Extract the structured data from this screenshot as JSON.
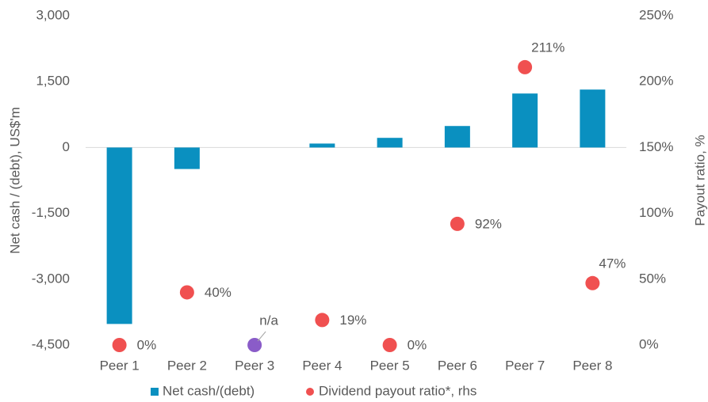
{
  "chart_data": {
    "type": "bar",
    "categories": [
      "Peer 1",
      "Peer 2",
      "Peer 3",
      "Peer 4",
      "Peer 5",
      "Peer 6",
      "Peer 7",
      "Peer 8"
    ],
    "ylabel": "Net cash / (debt), US$'m",
    "y2label": "Payout ratio, %",
    "ylim": [
      -4500,
      3000
    ],
    "yticks": [
      {
        "value": -4500,
        "label": "-4,500"
      },
      {
        "value": -3000,
        "label": "-3,000"
      },
      {
        "value": -1500,
        "label": "-1,500"
      },
      0,
      {
        "value": 1500,
        "label": "1,500"
      },
      {
        "value": 3000,
        "label": "3,000"
      }
    ],
    "y2lim": [
      0,
      250
    ],
    "y2ticks": [
      {
        "value": 0,
        "label": "0%"
      },
      {
        "value": 50,
        "label": "50%"
      },
      {
        "value": 100,
        "label": "100%"
      },
      {
        "value": 150,
        "label": "150%"
      },
      {
        "value": 200,
        "label": "200%"
      },
      {
        "value": 250,
        "label": "250%"
      }
    ],
    "legend": "bottom",
    "series": [
      {
        "name": "Net cash/(debt)",
        "type": "bar",
        "color": "#0a90c0",
        "values": [
          -4020,
          -490,
          null,
          90,
          220,
          490,
          1230,
          1320
        ]
      },
      {
        "name": "Dividend payout ratio*, rhs",
        "type": "scatter",
        "axis": "y2",
        "color": "#f05050",
        "na_color": "#8a5cc8",
        "values": [
          0,
          40,
          null,
          19,
          0,
          92,
          211,
          47
        ],
        "value_labels": [
          "0%",
          "40%",
          "n/a",
          "19%",
          "0%",
          "92%",
          "211%",
          "47%"
        ]
      }
    ]
  }
}
